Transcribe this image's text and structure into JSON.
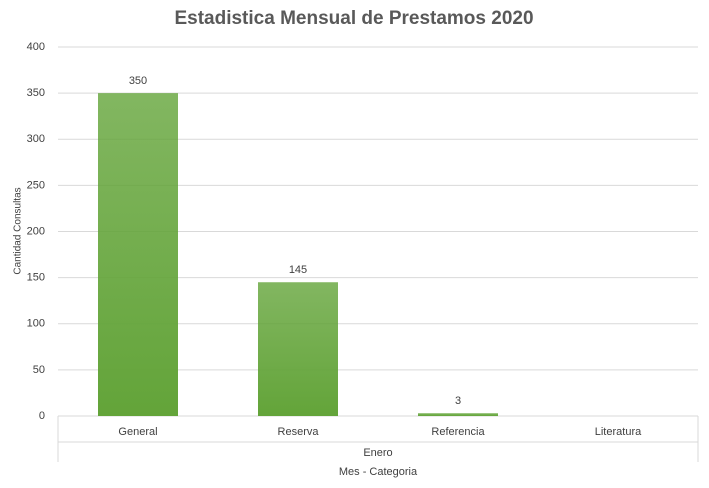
{
  "chart_data": {
    "type": "bar",
    "title": "Estadistica Mensual de Prestamos 2020",
    "y_label": "Cantidad Consultas",
    "x_label": "Mes - Categoria",
    "group": "Enero",
    "categories": [
      "General",
      "Reserva",
      "Referencia",
      "Literatura"
    ],
    "values": [
      350,
      145,
      3,
      null
    ],
    "color": "#63a439",
    "ylim": [
      0,
      400
    ],
    "yticks": [
      0,
      50,
      100,
      150,
      200,
      250,
      300,
      350,
      400
    ],
    "grid": true,
    "data_labels": true
  }
}
